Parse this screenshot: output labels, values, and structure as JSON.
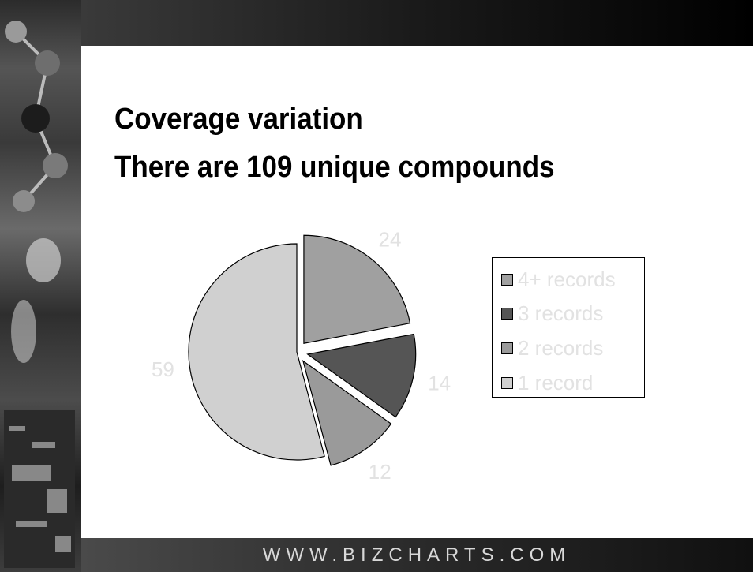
{
  "title": {
    "line1": "Coverage variation",
    "line2": "There are 109 unique compounds"
  },
  "footer": {
    "text": "WWW.BIZCHARTS.COM"
  },
  "chart_data": {
    "type": "pie",
    "categories": [
      "4+ records",
      "3 records",
      "2 records",
      "1 record"
    ],
    "values": [
      24,
      14,
      12,
      59
    ],
    "data_labels": [
      "24",
      "14",
      "12",
      "59"
    ],
    "colors": [
      "#a0a0a0",
      "#555555",
      "#9a9a9a",
      "#d0d0d0"
    ],
    "exploded": true,
    "legend_position": "right",
    "start_angle_deg": 0,
    "direction": "clockwise"
  },
  "colors": {
    "label_text": "#e2e2e2",
    "slice_stroke": "#000000"
  }
}
